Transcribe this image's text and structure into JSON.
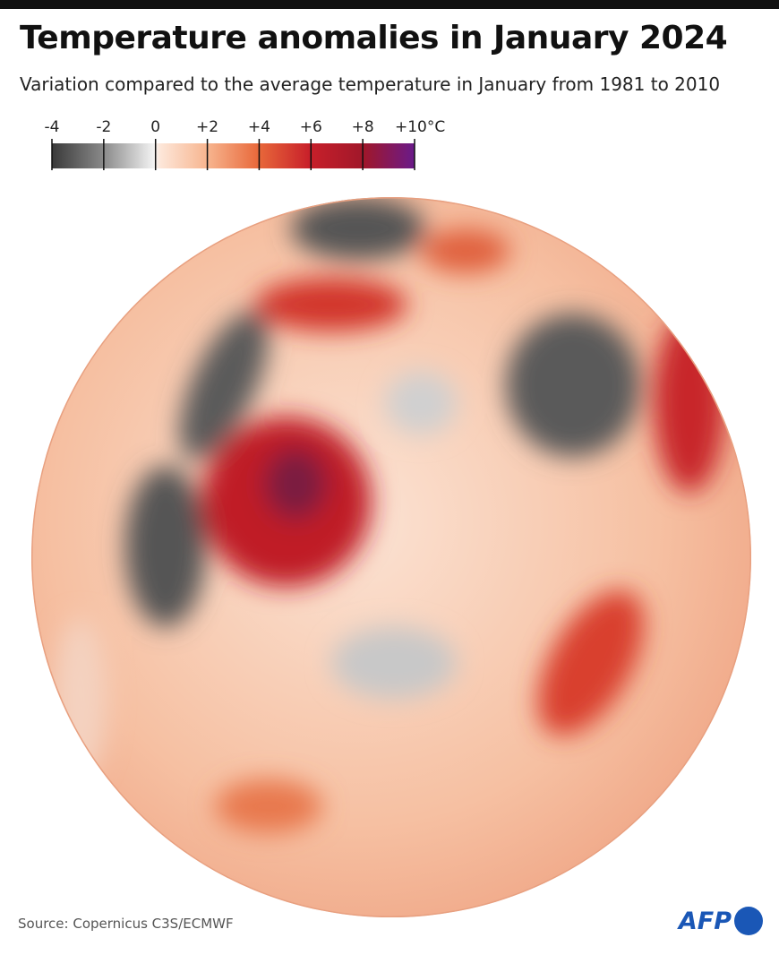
{
  "header": {
    "title": "Temperature anomalies in January 2024",
    "subtitle": "Variation compared to the average temperature in January from 1981 to 2010"
  },
  "legend": {
    "range": [
      -4,
      10
    ],
    "ticks": [
      -4,
      -2,
      0,
      {
        "value": 2,
        "label": "+2"
      },
      {
        "value": 4,
        "label": "+4"
      },
      {
        "value": 6,
        "label": "+6"
      },
      {
        "value": 8,
        "label": "+8"
      },
      {
        "value": 10,
        "label": "+10°C"
      }
    ]
  },
  "source": "Source: Copernicus C3S/ECMWF",
  "logo": "AFP"
}
